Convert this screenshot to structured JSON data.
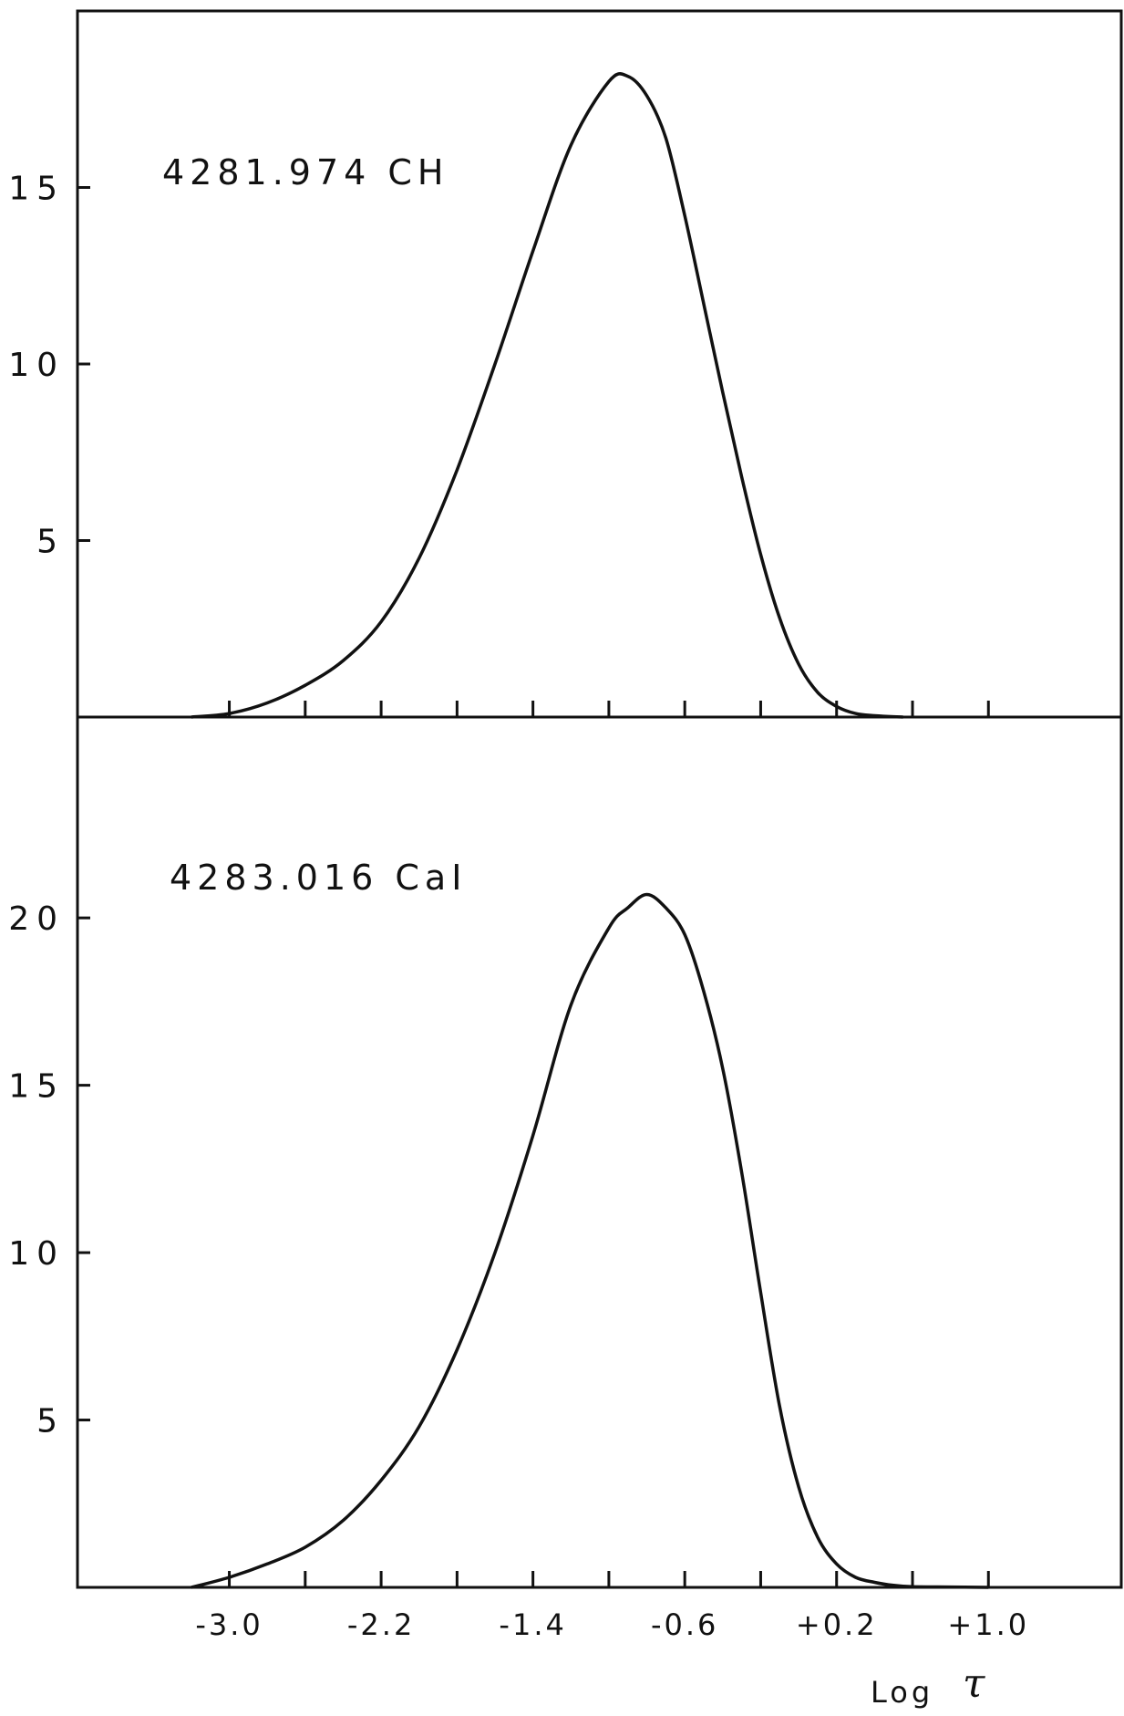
{
  "chart_data": {
    "type": "line",
    "xlabel": "Log",
    "xlabel_symbol": "τ",
    "x_ticks": [
      {
        "value": -3.0,
        "label": "-3.0"
      },
      {
        "value": -2.2,
        "label": "-2.2"
      },
      {
        "value": -1.4,
        "label": "-1.4"
      },
      {
        "value": -0.6,
        "label": "-0.6"
      },
      {
        "value": 0.2,
        "label": "+0.2"
      },
      {
        "value": 1.0,
        "label": "+1.0"
      }
    ],
    "x_minor_ticks": [
      -2.6,
      -1.8,
      -1.0,
      -0.2,
      0.6
    ],
    "xlim": [
      -3.8,
      1.7
    ],
    "grid": false,
    "panels": [
      {
        "label": "4281.974  CH",
        "ylim": [
          0,
          20
        ],
        "y_ticks": [
          {
            "value": 5,
            "label": "5"
          },
          {
            "value": 10,
            "label": "10"
          },
          {
            "value": 15,
            "label": "15"
          }
        ],
        "series": [
          {
            "x": [
              -3.2,
              -3.0,
              -2.8,
              -2.6,
              -2.4,
              -2.2,
              -2.0,
              -1.8,
              -1.6,
              -1.4,
              -1.2,
              -1.0,
              -0.9,
              -0.8,
              -0.7,
              -0.6,
              -0.5,
              -0.4,
              -0.3,
              -0.2,
              -0.1,
              0.0,
              0.1,
              0.2,
              0.3,
              0.4,
              0.5,
              0.55
            ],
            "y": [
              0.0,
              0.1,
              0.4,
              0.9,
              1.6,
              2.7,
              4.5,
              7.0,
              10.0,
              13.2,
              16.2,
              18.0,
              18.15,
              17.6,
              16.4,
              14.2,
              11.7,
              9.2,
              6.8,
              4.6,
              2.8,
              1.5,
              0.7,
              0.3,
              0.1,
              0.04,
              0.01,
              0.0
            ]
          }
        ]
      },
      {
        "label": "4283.016  CaI",
        "ylim": [
          0,
          26
        ],
        "y_ticks": [
          {
            "value": 5,
            "label": "5"
          },
          {
            "value": 10,
            "label": "10"
          },
          {
            "value": 15,
            "label": "15"
          },
          {
            "value": 20,
            "label": "20"
          }
        ],
        "series": [
          {
            "x": [
              -3.2,
              -3.0,
              -2.8,
              -2.6,
              -2.4,
              -2.2,
              -2.0,
              -1.8,
              -1.6,
              -1.4,
              -1.2,
              -1.0,
              -0.9,
              -0.8,
              -0.7,
              -0.6,
              -0.5,
              -0.4,
              -0.3,
              -0.2,
              -0.1,
              0.0,
              0.1,
              0.2,
              0.3,
              0.4,
              0.5,
              0.6,
              0.8,
              1.0
            ],
            "y": [
              0.0,
              0.3,
              0.7,
              1.2,
              2.0,
              3.2,
              4.8,
              7.1,
              10.0,
              13.5,
              17.4,
              19.7,
              20.3,
              20.7,
              20.3,
              19.5,
              17.8,
              15.5,
              12.4,
              8.8,
              5.4,
              3.0,
              1.5,
              0.7,
              0.3,
              0.15,
              0.06,
              0.02,
              0.01,
              0.0
            ]
          }
        ]
      }
    ]
  }
}
